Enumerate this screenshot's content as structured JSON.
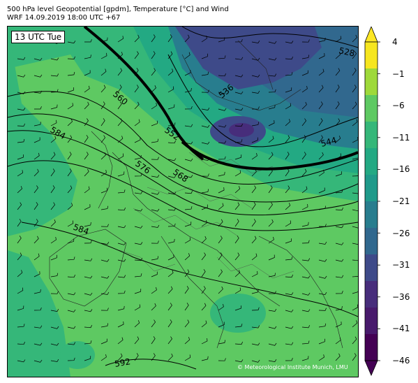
{
  "header": {
    "title_line1": "500 hPa level Geopotential [gpdm], Temperature [°C] and Wind",
    "title_line2": "WRF 14.09.2019 18:00 UTC +67"
  },
  "map": {
    "time_label": "13 UTC Tue",
    "copyright": "© Meteorological Institute Munich, LMU",
    "contour_labels": [
      "528",
      "536",
      "544",
      "552",
      "560",
      "568",
      "576",
      "584",
      "584",
      "592"
    ]
  },
  "colorbar": {
    "ticks": [
      "4",
      "−1",
      "−6",
      "−11",
      "−16",
      "−21",
      "−26",
      "−31",
      "−36",
      "−41",
      "−46"
    ],
    "colors": [
      "#f6e61f",
      "#9ed93a",
      "#5ec962",
      "#35b779",
      "#23a983",
      "#1f9a8a",
      "#287d8e",
      "#31688e",
      "#3e4a89",
      "#472d7b",
      "#481a6c",
      "#440154"
    ],
    "extend_top_color": "#fde725",
    "extend_bottom_color": "#440154"
  },
  "palette": {
    "warm_green": "#5ec962",
    "mid_green": "#35b779",
    "teal": "#23a983",
    "dark_teal": "#287d8e",
    "blue": "#31688e",
    "purple": "#472d7b"
  }
}
